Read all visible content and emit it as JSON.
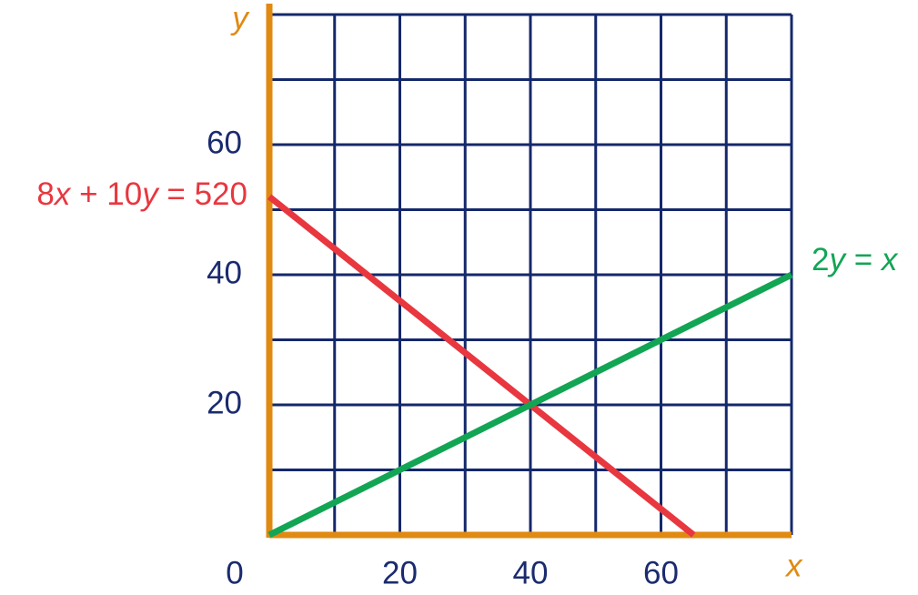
{
  "chart_data": {
    "type": "line",
    "x_label": "x",
    "y_label": "y",
    "xlim": [
      0,
      80
    ],
    "ylim": [
      0,
      80
    ],
    "xticks": [
      0,
      20,
      40,
      60
    ],
    "yticks": [
      20,
      40,
      60
    ],
    "xgrid": [
      10,
      20,
      30,
      40,
      50,
      60,
      70,
      80
    ],
    "ygrid": [
      10,
      20,
      30,
      40,
      50,
      60,
      70,
      80
    ],
    "grid_color": "#14286b",
    "axis_color": "#e08a12",
    "tick_color": "#1a2b6e",
    "series": [
      {
        "name": "8x + 10y = 520",
        "color": "#e8373f",
        "x": [
          0,
          65
        ],
        "values": [
          52,
          0
        ]
      },
      {
        "name": "2y = x",
        "color": "#12a554",
        "x": [
          0,
          80
        ],
        "values": [
          0,
          40
        ]
      }
    ]
  }
}
